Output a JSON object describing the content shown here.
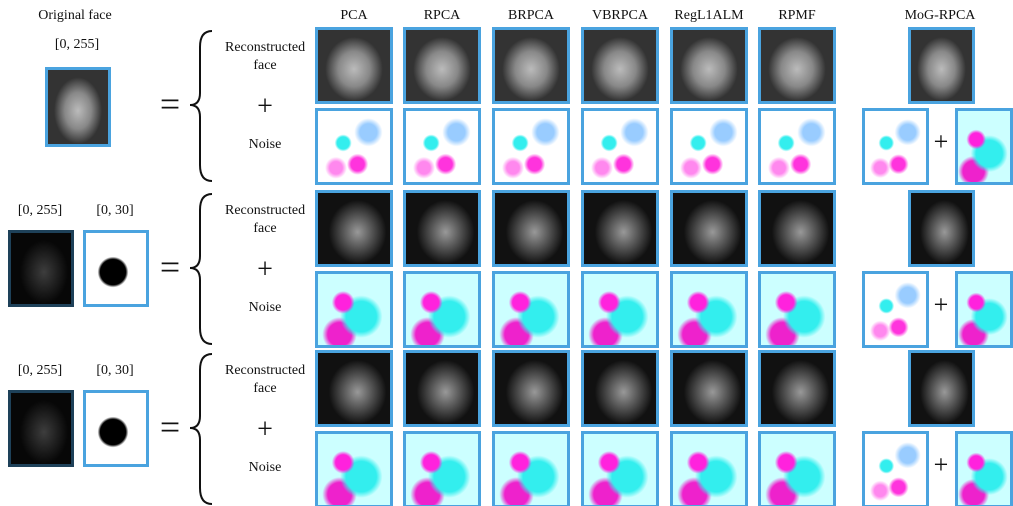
{
  "header": {
    "original_label": "Original face",
    "methods": [
      "PCA",
      "RPCA",
      "BRPCA",
      "VBRPCA",
      "RegL1ALM",
      "RPMF",
      "MoG-RPCA"
    ]
  },
  "rows": [
    {
      "ranges": [
        "[0, 255]"
      ],
      "equals": "=",
      "reconstructed": "Reconstructed face",
      "plus": "+",
      "noise": "Noise",
      "mog_plus": "+"
    },
    {
      "ranges": [
        "[0, 255]",
        "[0, 30]"
      ],
      "equals": "=",
      "reconstructed": "Reconstructed face",
      "plus": "+",
      "noise": "Noise",
      "mog_plus": "+"
    },
    {
      "ranges": [
        "[0, 255]",
        "[0, 30]"
      ],
      "equals": "=",
      "reconstructed": "Reconstructed face",
      "plus": "+",
      "noise": "Noise",
      "mog_plus": "+"
    }
  ]
}
